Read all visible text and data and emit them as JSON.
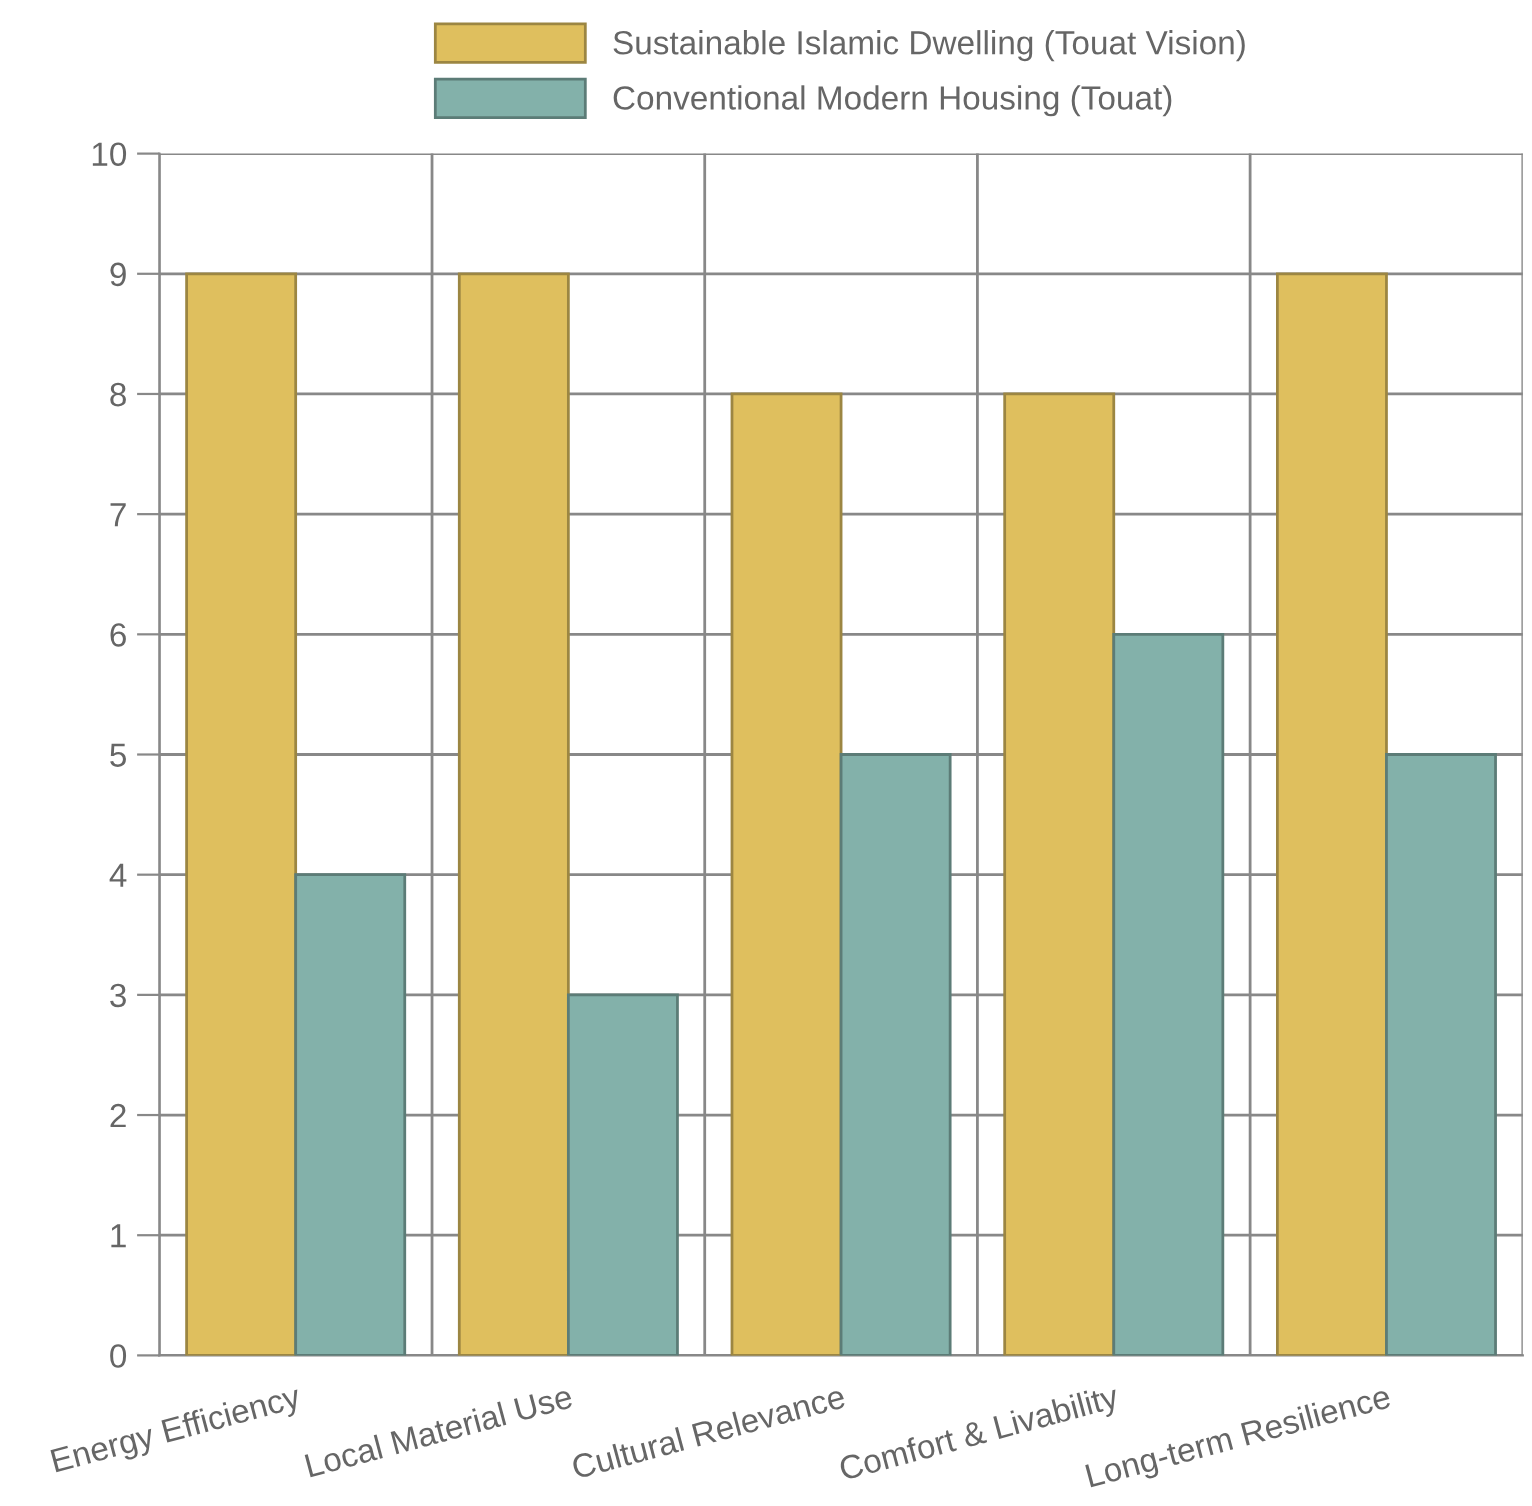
{
  "chart_data": {
    "type": "bar",
    "categories": [
      "Energy Efficiency",
      "Local Material Use",
      "Cultural Relevance",
      "Comfort & Livability",
      "Long-term Resilience"
    ],
    "series": [
      {
        "name": "Sustainable Islamic Dwelling (Touat Vision)",
        "color": "#dfbf5e",
        "values": [
          9,
          9,
          8,
          8,
          9
        ]
      },
      {
        "name": "Conventional Modern Housing (Touat)",
        "color": "#83b1aa",
        "values": [
          4,
          3,
          5,
          6,
          5
        ]
      }
    ],
    "ylim": [
      0,
      10
    ],
    "yticks": [
      0,
      1,
      2,
      3,
      4,
      5,
      6,
      7,
      8,
      9,
      10
    ],
    "grid": true,
    "legend": "top"
  }
}
